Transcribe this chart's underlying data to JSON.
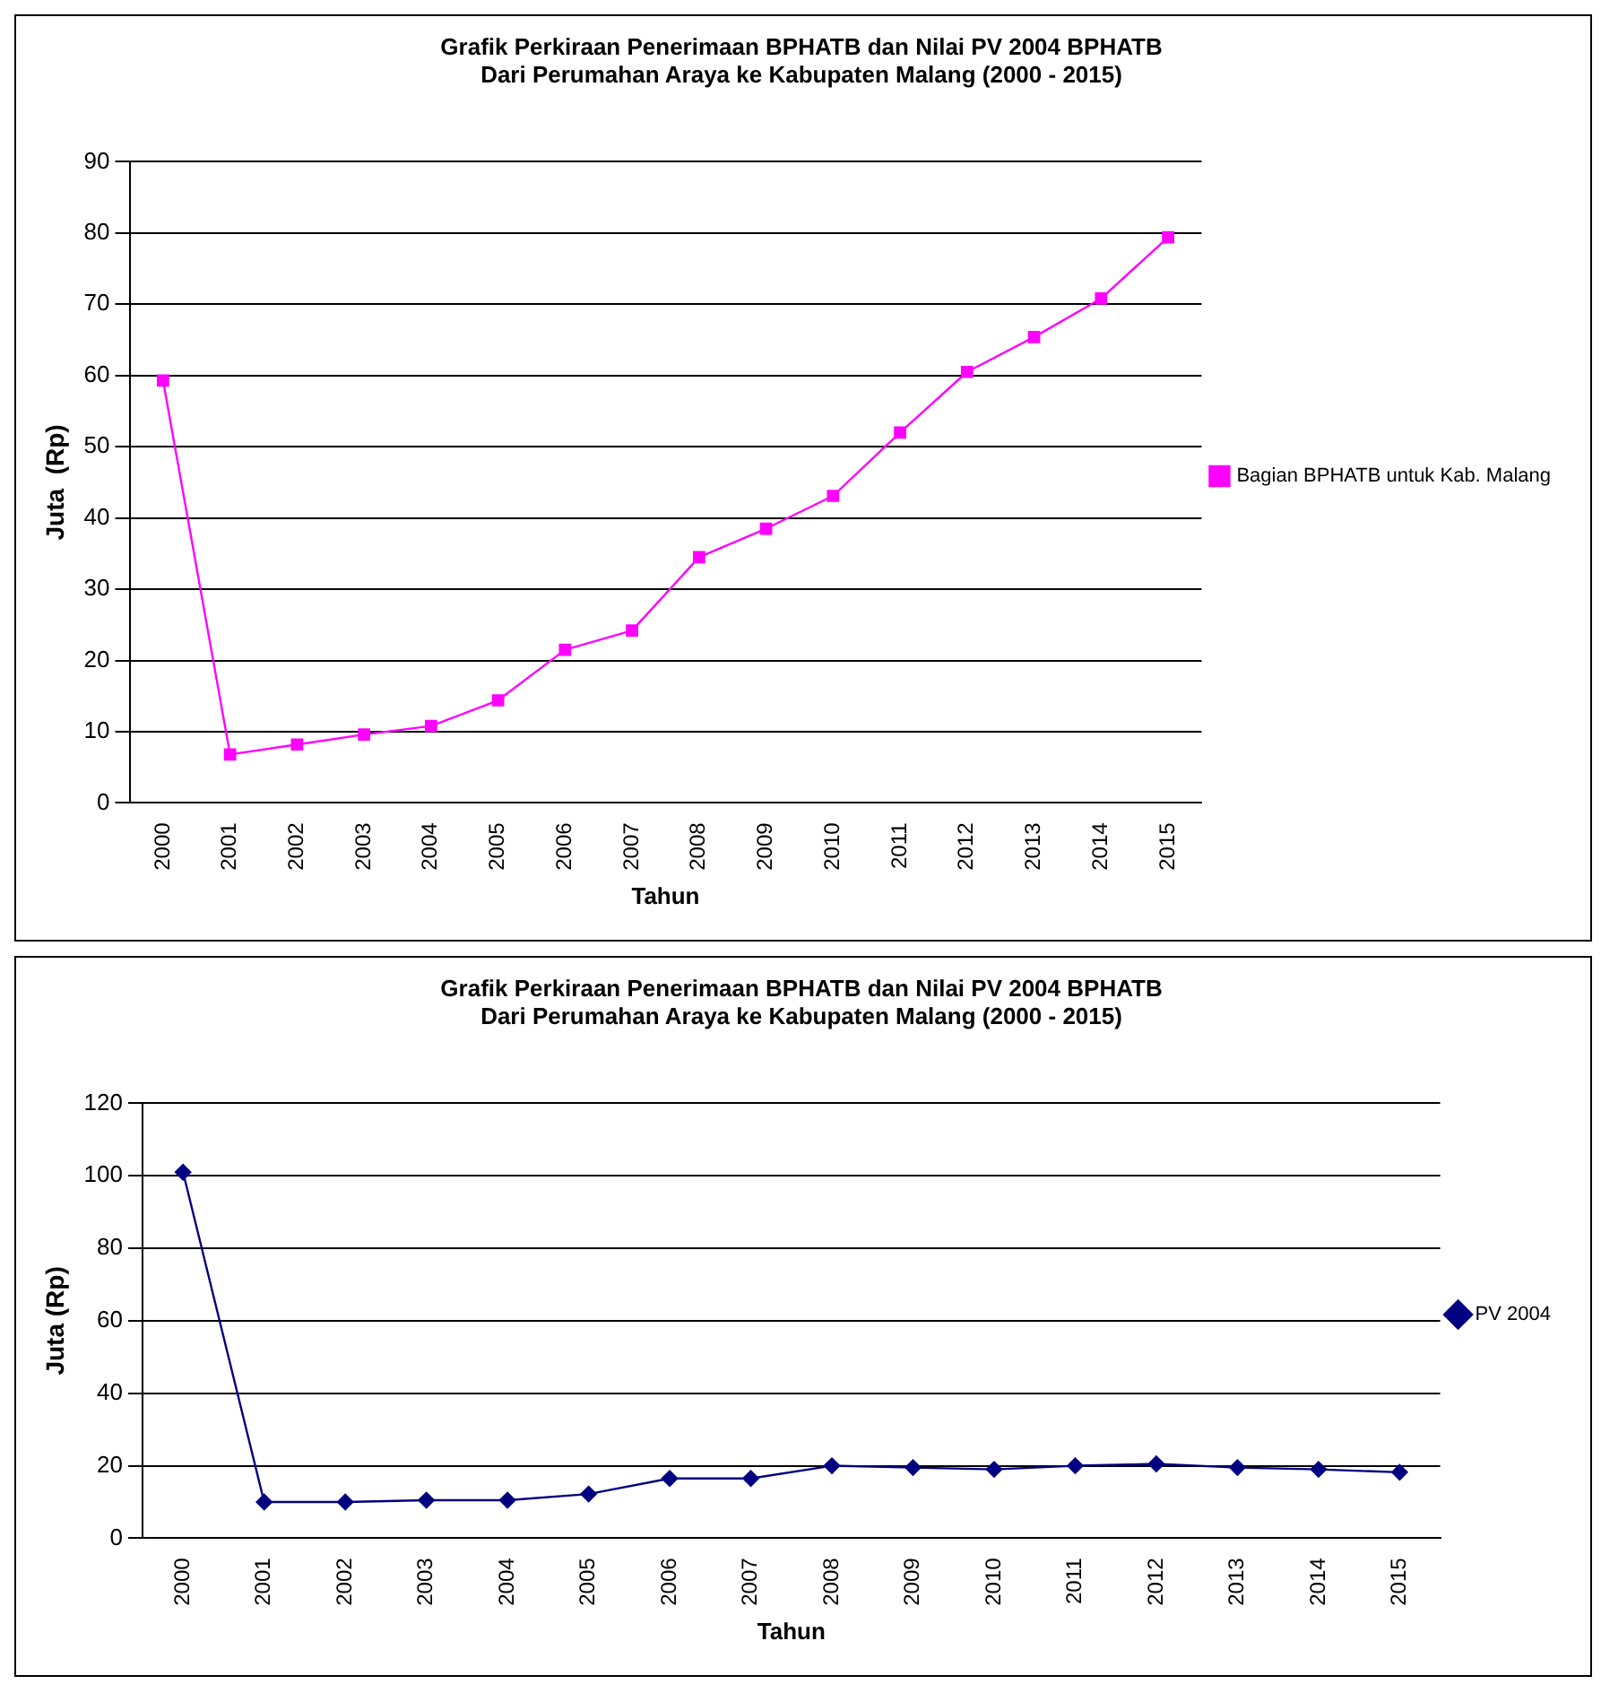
{
  "chart_data": [
    {
      "type": "line",
      "title": "Grafik Perkiraan Penerimaan BPHATB dan Nilai PV 2004 BPHATB\nDari Perumahan Araya ke Kabupaten Malang (2000 - 2015)",
      "xlabel": "Tahun",
      "ylabel": "Juta  (Rp)",
      "categories": [
        "2000",
        "2001",
        "2002",
        "2003",
        "2004",
        "2005",
        "2006",
        "2007",
        "2008",
        "2009",
        "2010",
        "2011",
        "2012",
        "2013",
        "2014",
        "2015"
      ],
      "series": [
        {
          "name": "Bagian BPHATB untuk Kab. Malang",
          "color": "#ff00ff",
          "values": [
            59.3,
            6.8,
            8.2,
            9.6,
            10.8,
            14.4,
            21.5,
            24.2,
            34.5,
            38.5,
            43.1,
            52,
            60.5,
            65.4,
            70.8,
            79.4
          ]
        }
      ],
      "ylim": [
        0,
        90
      ],
      "yticks": [
        0,
        10,
        20,
        30,
        40,
        50,
        60,
        70,
        80,
        90
      ],
      "grid": "y",
      "legend": "right",
      "marker": "square"
    },
    {
      "type": "line",
      "title": "Grafik Perkiraan Penerimaan BPHATB dan Nilai PV 2004 BPHATB\nDari Perumahan Araya ke Kabupaten Malang (2000 - 2015)",
      "xlabel": "Tahun",
      "ylabel": "Juta (Rp)",
      "categories": [
        "2000",
        "2001",
        "2002",
        "2003",
        "2004",
        "2005",
        "2006",
        "2007",
        "2008",
        "2009",
        "2010",
        "2011",
        "2012",
        "2013",
        "2014",
        "2015"
      ],
      "series": [
        {
          "name": "PV 2004",
          "color": "#000080",
          "values": [
            101,
            10,
            10,
            10.5,
            10.5,
            12.2,
            16.5,
            16.5,
            20,
            19.5,
            19,
            20,
            20.5,
            19.5,
            19,
            18.2
          ]
        }
      ],
      "ylim": [
        0,
        120
      ],
      "yticks": [
        0,
        20,
        40,
        60,
        80,
        100,
        120
      ],
      "grid": "y",
      "legend": "right",
      "marker": "diamond"
    }
  ]
}
